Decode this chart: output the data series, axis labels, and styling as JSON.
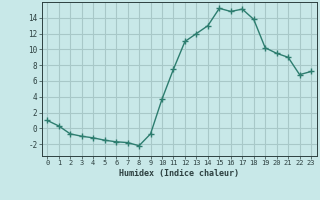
{
  "x": [
    0,
    1,
    2,
    3,
    4,
    5,
    6,
    7,
    8,
    9,
    10,
    11,
    12,
    13,
    14,
    15,
    16,
    17,
    18,
    19,
    20,
    21,
    22,
    23
  ],
  "y": [
    1,
    0.3,
    -0.7,
    -1.0,
    -1.2,
    -1.5,
    -1.7,
    -1.8,
    -2.2,
    -0.7,
    3.7,
    7.5,
    11.0,
    12.0,
    13.0,
    15.2,
    14.8,
    15.1,
    13.8,
    10.2,
    9.5,
    9.0,
    6.8,
    7.2
  ],
  "line_color": "#2d7d6f",
  "marker": "+",
  "bg_color": "#c8e8e8",
  "grid_color": "#a8c8c8",
  "xlabel": "Humidex (Indice chaleur)",
  "ylim": [
    -3.5,
    16
  ],
  "xlim": [
    -0.5,
    23.5
  ],
  "yticks": [
    -2,
    0,
    2,
    4,
    6,
    8,
    10,
    12,
    14
  ],
  "xticks": [
    0,
    1,
    2,
    3,
    4,
    5,
    6,
    7,
    8,
    9,
    10,
    11,
    12,
    13,
    14,
    15,
    16,
    17,
    18,
    19,
    20,
    21,
    22,
    23
  ],
  "font_color": "#2d4040",
  "font_family": "monospace"
}
